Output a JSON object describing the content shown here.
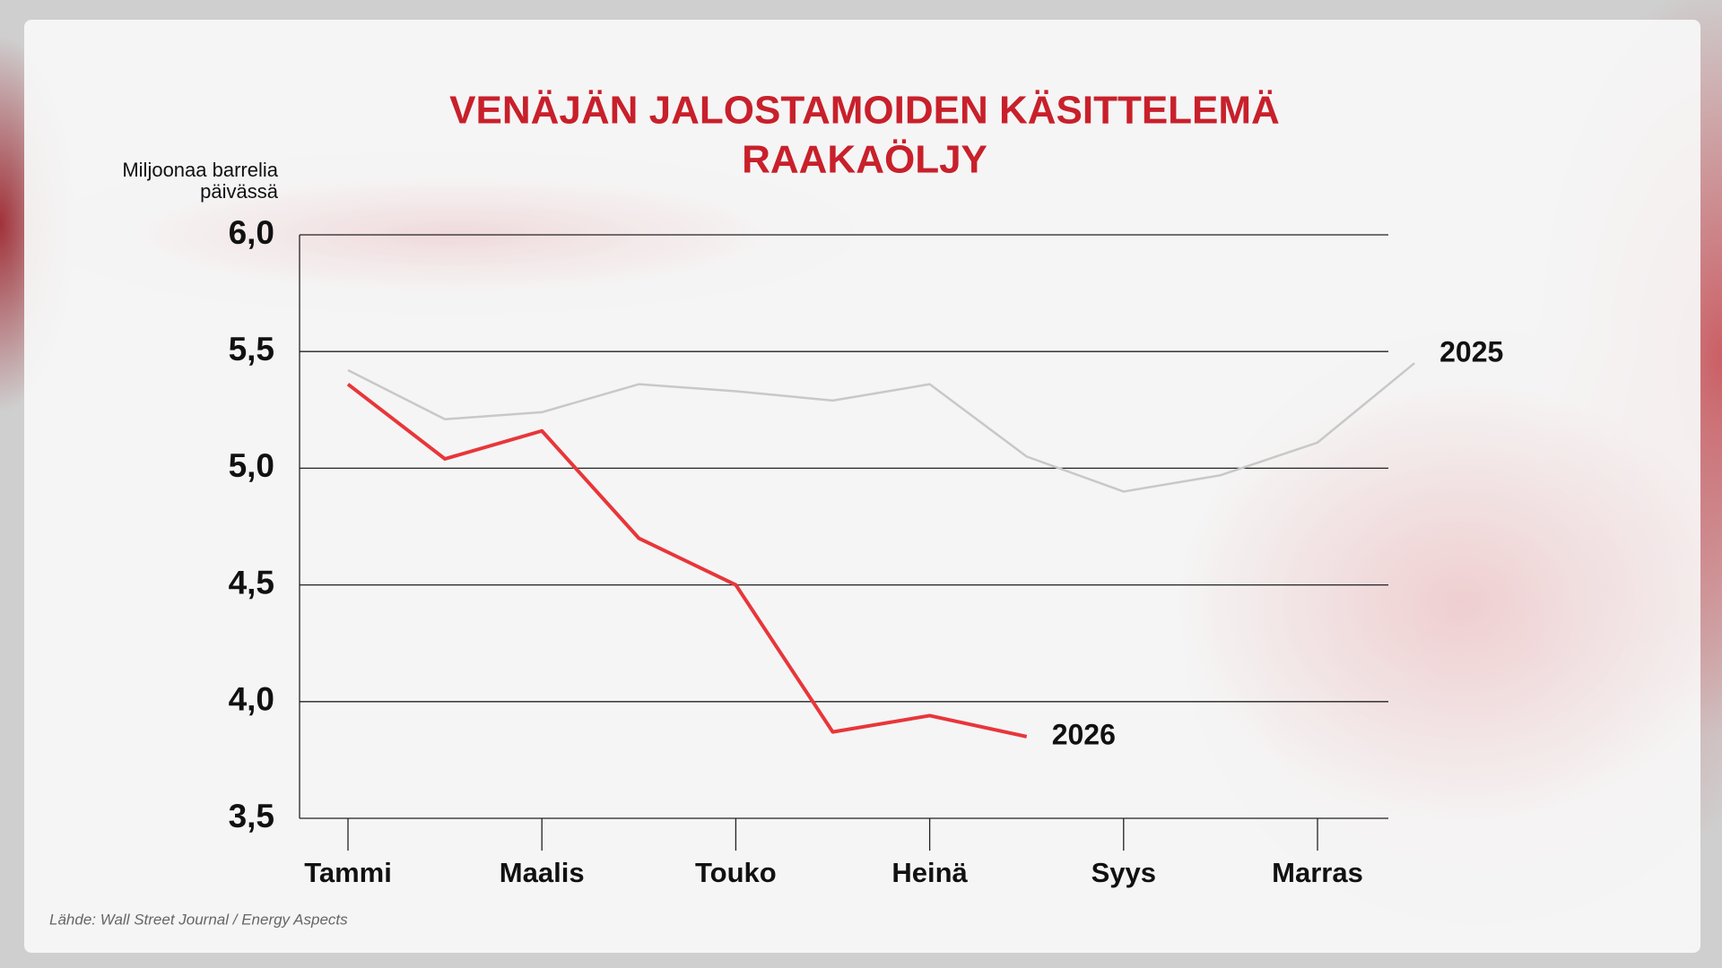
{
  "chart_data": {
    "type": "line",
    "title": [
      "VENÄJÄN JALOSTAMOIDEN KÄSITTELEMÄ",
      "RAAKAÖLJY"
    ],
    "y_label": [
      "Miljoonaa barrelia",
      "päivässä"
    ],
    "source": "Lähde: Wall Street Journal / Energy Aspects",
    "categories": [
      "Tammi",
      null,
      "Maalis",
      null,
      "Touko",
      null,
      "Heinä",
      null,
      "Syys",
      null,
      "Marras",
      null
    ],
    "series": [
      {
        "name": "2025",
        "color": "#c8c8c8",
        "values": [
          5.42,
          5.21,
          5.24,
          5.36,
          5.33,
          5.29,
          5.36,
          5.05,
          4.9,
          4.97,
          5.11,
          5.45
        ]
      },
      {
        "name": "2026",
        "color": "#e8363a",
        "values": [
          5.36,
          5.04,
          5.16,
          4.7,
          4.5,
          3.87,
          3.94,
          3.85,
          null,
          null,
          null,
          null
        ]
      }
    ],
    "ylim": [
      3.5,
      6.0
    ],
    "yticks": [
      {
        "value": 3.5,
        "label": "3,5"
      },
      {
        "value": 4.0,
        "label": "4,0"
      },
      {
        "value": 4.5,
        "label": "4,5"
      },
      {
        "value": 5.0,
        "label": "5,0"
      },
      {
        "value": 5.5,
        "label": "5,5"
      },
      {
        "value": 6.0,
        "label": "6,0"
      }
    ],
    "grid": true
  }
}
